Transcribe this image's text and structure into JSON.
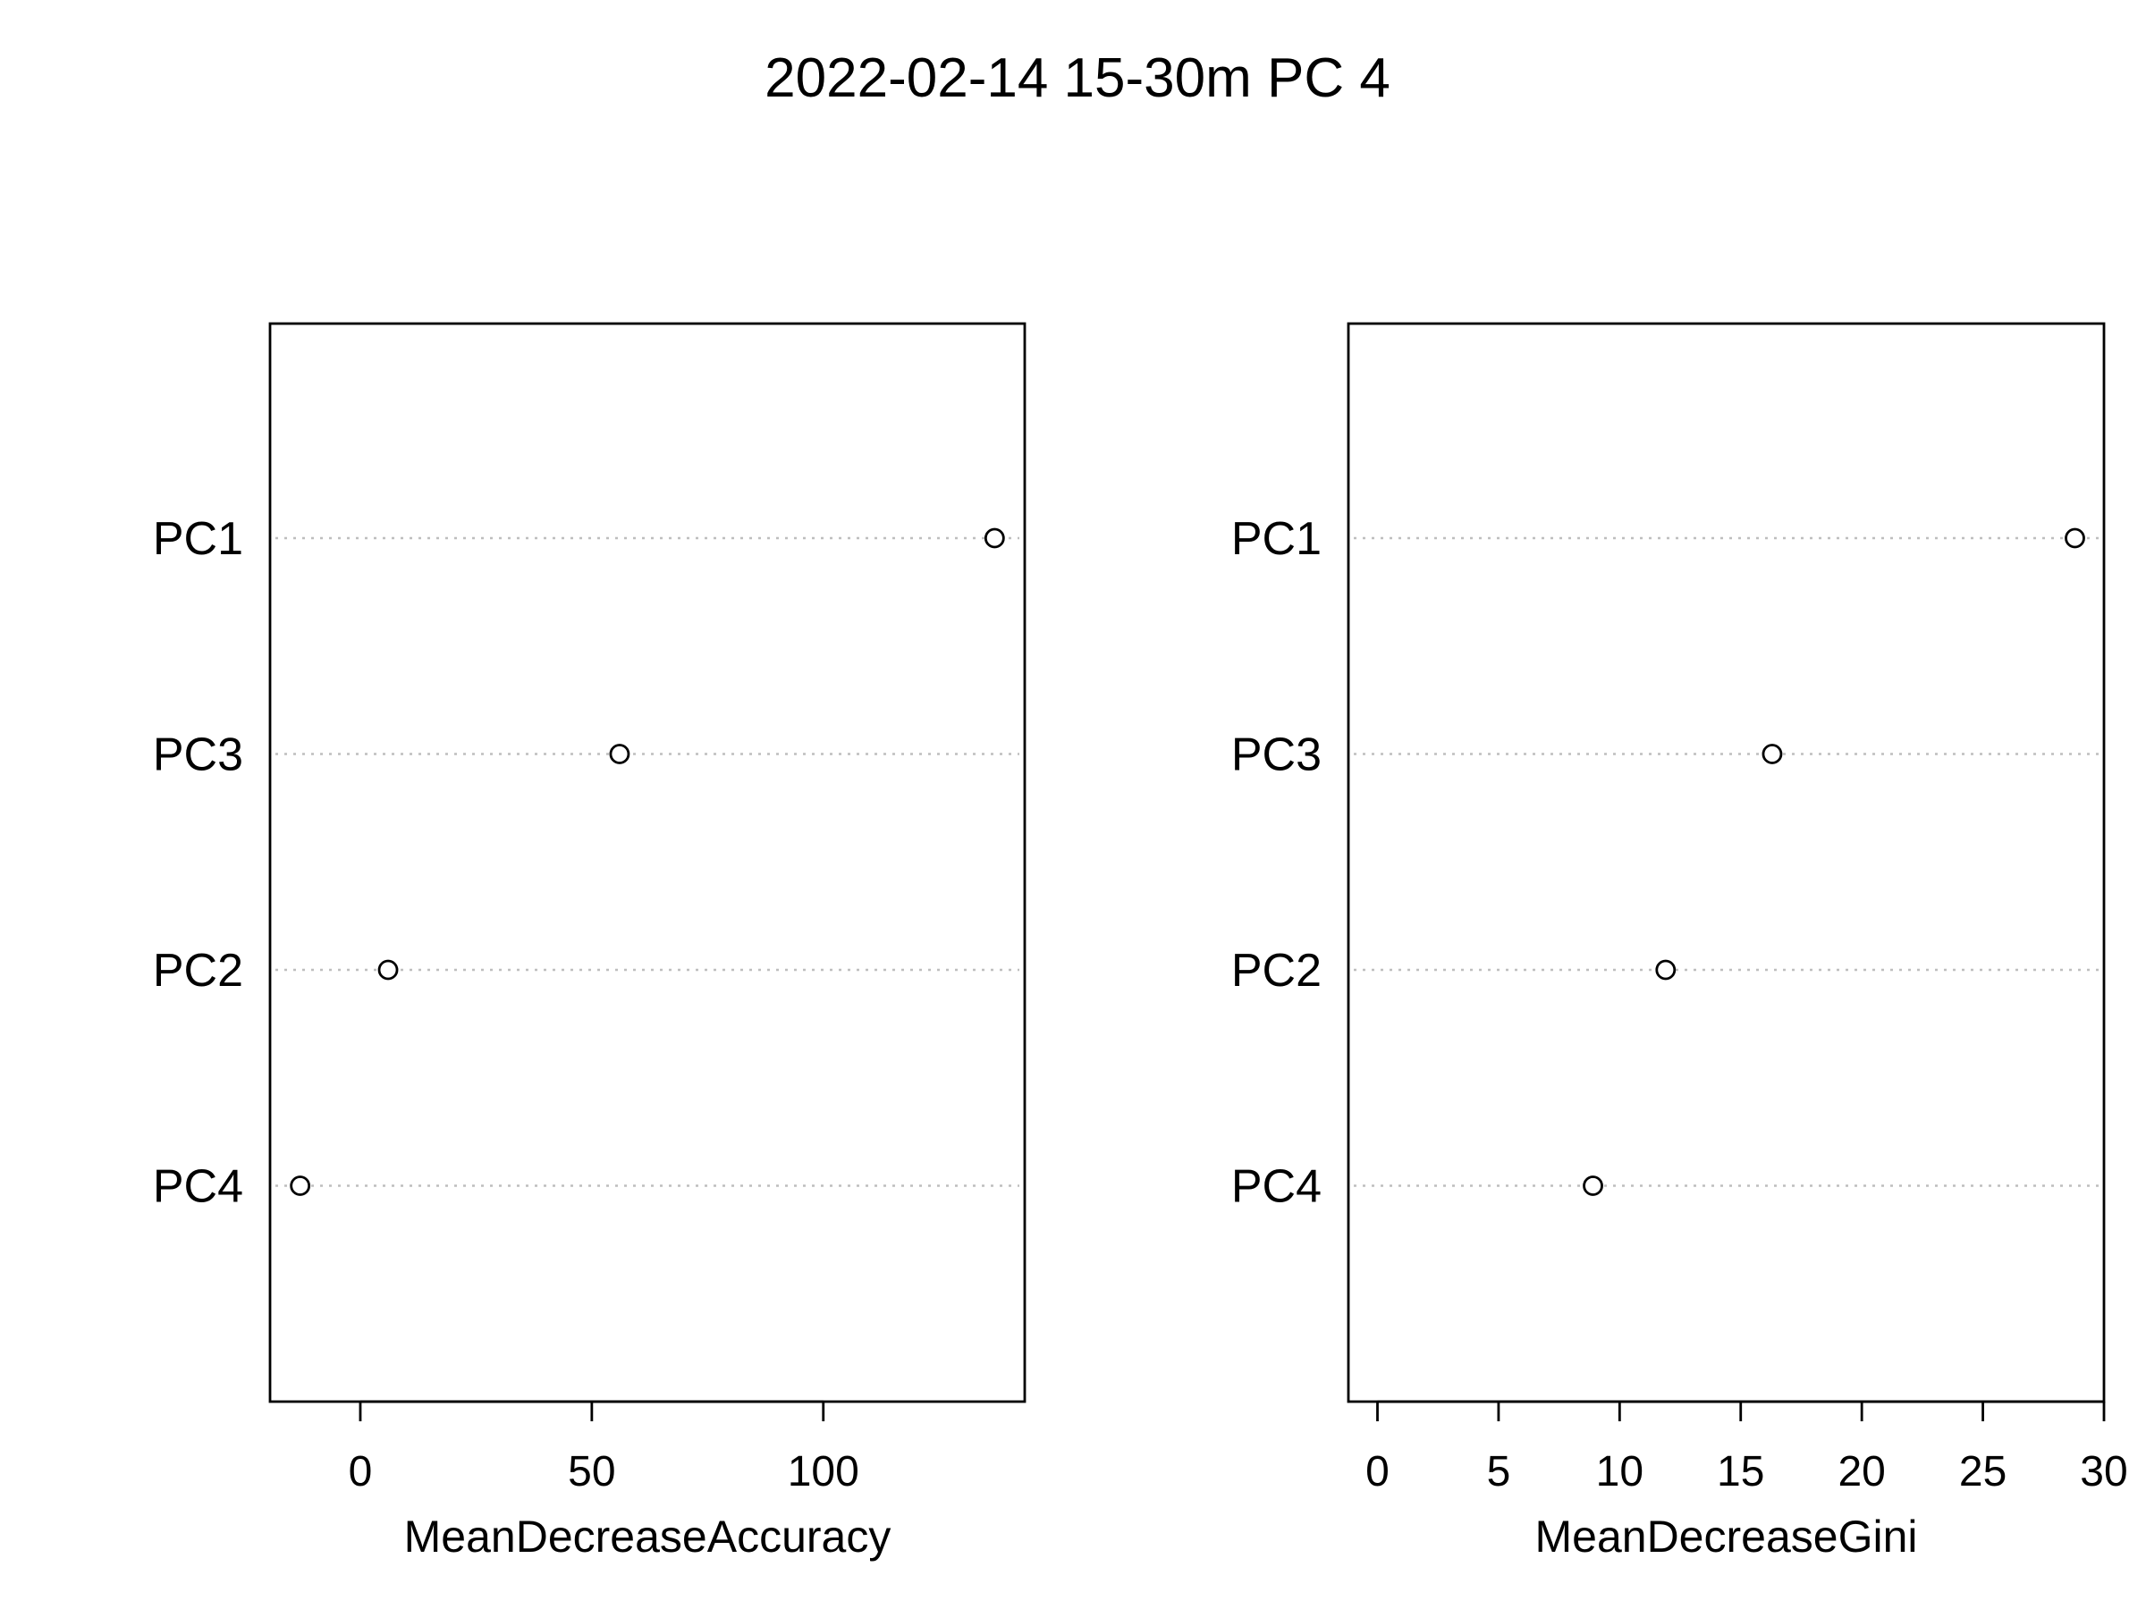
{
  "title": "2022-02-14 15-30m PC 4",
  "chart_data": [
    {
      "type": "scatter",
      "subtype": "dotchart",
      "xlabel": "MeanDecreaseAccuracy",
      "categories": [
        "PC1",
        "PC3",
        "PC2",
        "PC4"
      ],
      "values": [
        137,
        56,
        6,
        -13
      ],
      "xticks": [
        0,
        50,
        100
      ],
      "xlim": [
        -19.5,
        143.5
      ],
      "grid": "dotted horizontal"
    },
    {
      "type": "scatter",
      "subtype": "dotchart",
      "xlabel": "MeanDecreaseGini",
      "categories": [
        "PC1",
        "PC3",
        "PC2",
        "PC4"
      ],
      "values": [
        28.8,
        16.3,
        11.9,
        8.9
      ],
      "xticks": [
        0,
        5,
        10,
        15,
        20,
        25,
        30
      ],
      "xlim": [
        -1.2,
        30
      ]
    }
  ],
  "colors": {
    "axis": "#000000",
    "grid": "#bebebe",
    "point": "#000000"
  }
}
